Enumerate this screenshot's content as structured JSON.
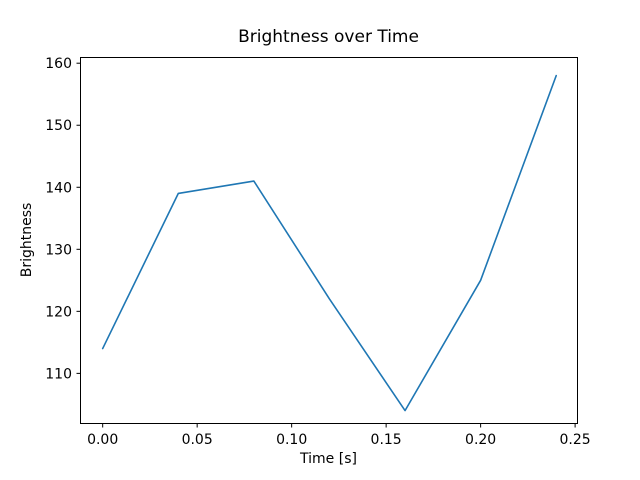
{
  "chart_data": {
    "type": "line",
    "title": "Brightness over Time",
    "xlabel": "Time [s]",
    "ylabel": "Brightness",
    "x": [
      0.0,
      0.04,
      0.08,
      0.12,
      0.16,
      0.2,
      0.24
    ],
    "y": [
      114,
      139,
      141,
      122,
      104,
      125,
      158
    ],
    "xticks": [
      0.0,
      0.05,
      0.1,
      0.15,
      0.2,
      0.25
    ],
    "xtick_labels": [
      "0.00",
      "0.05",
      "0.10",
      "0.15",
      "0.20",
      "0.25"
    ],
    "yticks": [
      110,
      120,
      130,
      140,
      150,
      160
    ],
    "ytick_labels": [
      "110",
      "120",
      "130",
      "140",
      "150",
      "160"
    ],
    "xlim": [
      -0.012,
      0.251
    ],
    "ylim": [
      102,
      161
    ],
    "grid": false,
    "legend": "none",
    "line_color": "#1f77b4",
    "axis_color": "#000000",
    "background_color": "#ffffff"
  }
}
